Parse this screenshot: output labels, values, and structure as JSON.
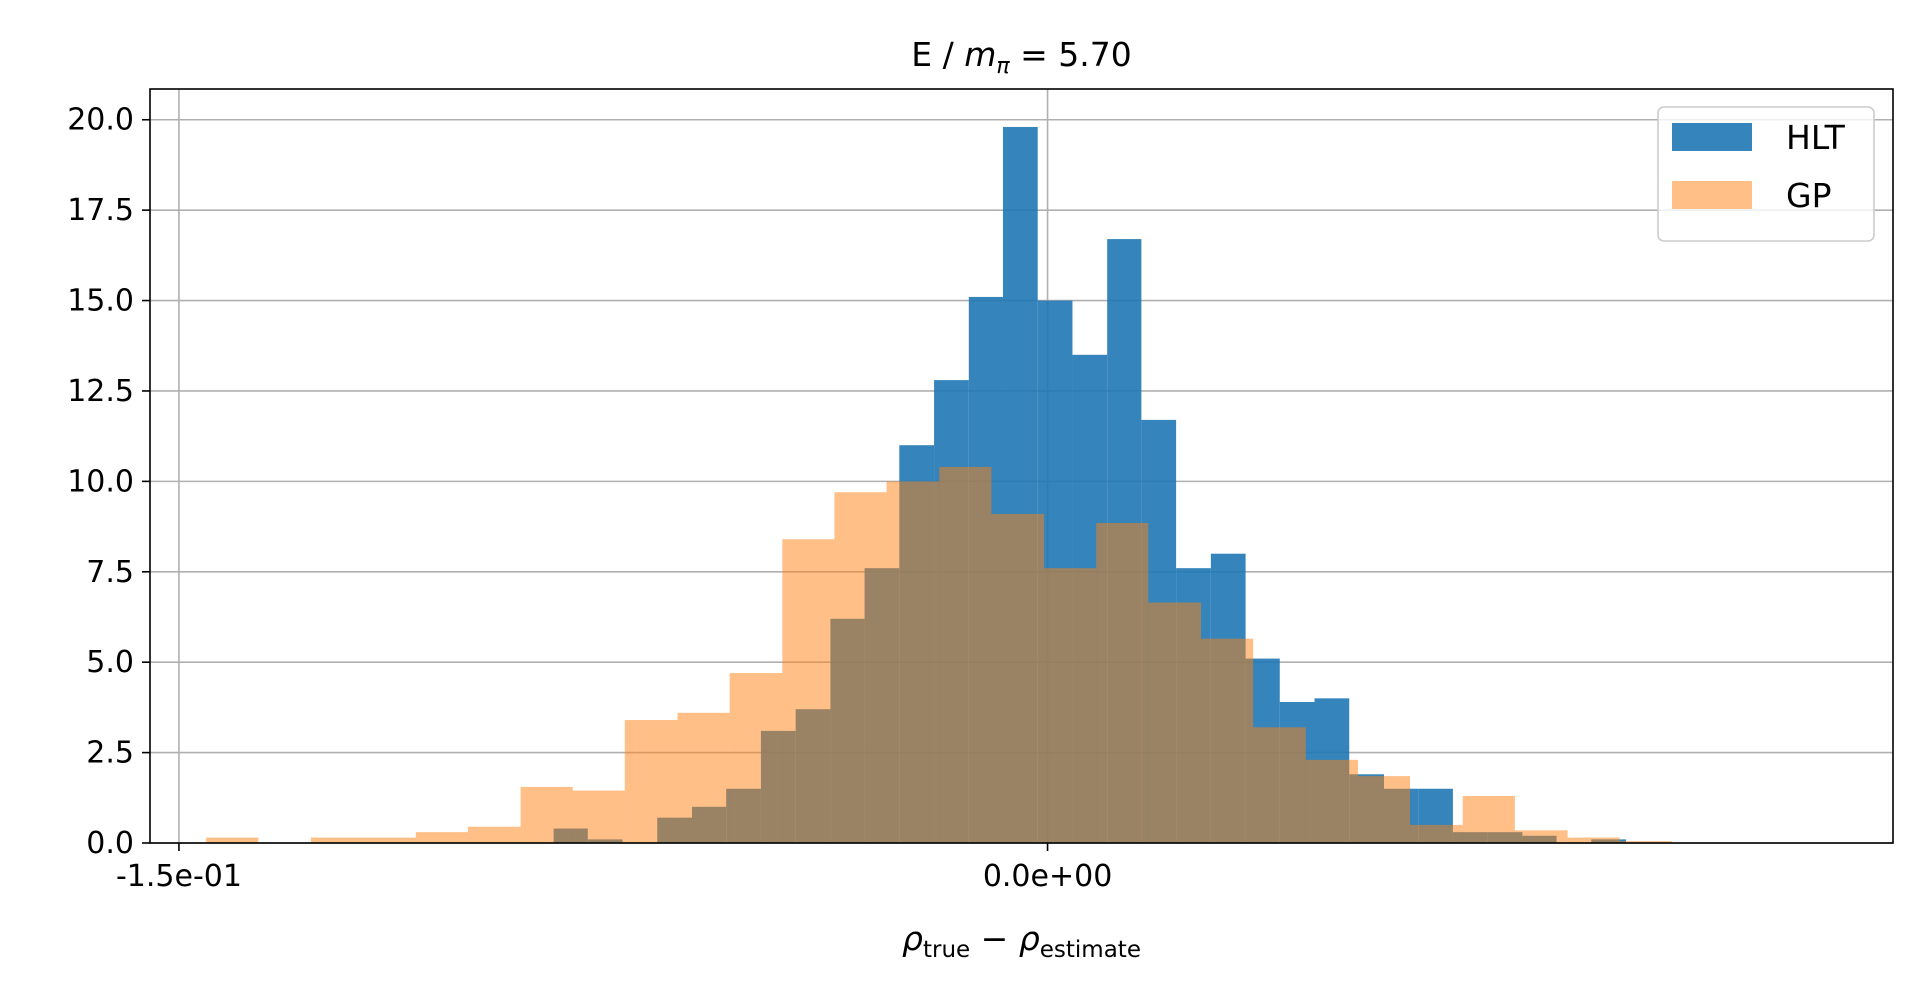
{
  "chart_data": {
    "type": "bar",
    "title_main": "E / ",
    "title_symbol": "m",
    "title_subscript": "π",
    "title_value": " = 5.70",
    "xlabel": {
      "rho": "ρ",
      "true_sub": "true",
      "minus": " − ",
      "estimate_sub": "estimate"
    },
    "xlim": [
      -0.155,
      0.146
    ],
    "ylim": [
      0,
      20.85
    ],
    "x_ticks": [
      {
        "value": -0.15,
        "label": "-1.5e-01"
      },
      {
        "value": 0.0,
        "label": "0.0e+00"
      }
    ],
    "y_ticks": [
      {
        "value": 0.0,
        "label": "0.0"
      },
      {
        "value": 2.5,
        "label": "2.5"
      },
      {
        "value": 5.0,
        "label": "5.0"
      },
      {
        "value": 7.5,
        "label": "7.5"
      },
      {
        "value": 10.0,
        "label": "10.0"
      },
      {
        "value": 12.5,
        "label": "12.5"
      },
      {
        "value": 15.0,
        "label": "15.0"
      },
      {
        "value": 17.5,
        "label": "17.5"
      },
      {
        "value": 20.0,
        "label": "20.0"
      }
    ],
    "grid": true,
    "legend_position": "top-right",
    "series": [
      {
        "name": "HLT",
        "color": "#1f77b4",
        "opacity": 0.9,
        "bin_edges": [
          -0.0853,
          -0.0794,
          -0.0734,
          -0.0674,
          -0.0614,
          -0.0555,
          -0.0495,
          -0.0435,
          -0.0375,
          -0.0316,
          -0.0256,
          -0.0196,
          -0.0136,
          -0.0077,
          -0.0017,
          0.0043,
          0.0103,
          0.0162,
          0.0222,
          0.0282,
          0.0342,
          0.0401,
          0.0461,
          0.0521,
          0.0581,
          0.064,
          0.07,
          0.076,
          0.082,
          0.0879,
          0.0939,
          0.0999
        ],
        "values": [
          0.4,
          0.1,
          0.0,
          0.7,
          1.0,
          1.5,
          3.1,
          3.7,
          6.2,
          7.6,
          11.0,
          12.8,
          15.1,
          19.8,
          15.0,
          13.5,
          16.7,
          11.7,
          7.6,
          8.0,
          5.1,
          3.9,
          4.0,
          1.9,
          1.5,
          1.5,
          0.3,
          0.3,
          0.2,
          0.0,
          0.1
        ]
      },
      {
        "name": "GP",
        "color": "#ff7f0e",
        "opacity": 0.5,
        "bin_edges": [
          -0.1453,
          -0.1363,
          -0.1272,
          -0.1182,
          -0.1091,
          -0.1001,
          -0.091,
          -0.082,
          -0.073,
          -0.0639,
          -0.0549,
          -0.0458,
          -0.0368,
          -0.0278,
          -0.0187,
          -0.0097,
          -0.0006,
          0.0084,
          0.0174,
          0.0265,
          0.0355,
          0.0446,
          0.0536,
          0.0626,
          0.0717,
          0.0807,
          0.0898,
          0.0988,
          0.1078,
          0.1169,
          0.1259,
          0.135
        ],
        "values": [
          0.15,
          0.0,
          0.15,
          0.15,
          0.3,
          0.45,
          1.55,
          1.45,
          3.4,
          3.6,
          4.7,
          8.4,
          9.7,
          10.0,
          10.4,
          9.1,
          7.6,
          8.85,
          6.65,
          5.65,
          3.2,
          2.3,
          1.85,
          0.5,
          1.3,
          0.35,
          0.15,
          0.05,
          0.0,
          0.0,
          0.0
        ]
      }
    ]
  }
}
